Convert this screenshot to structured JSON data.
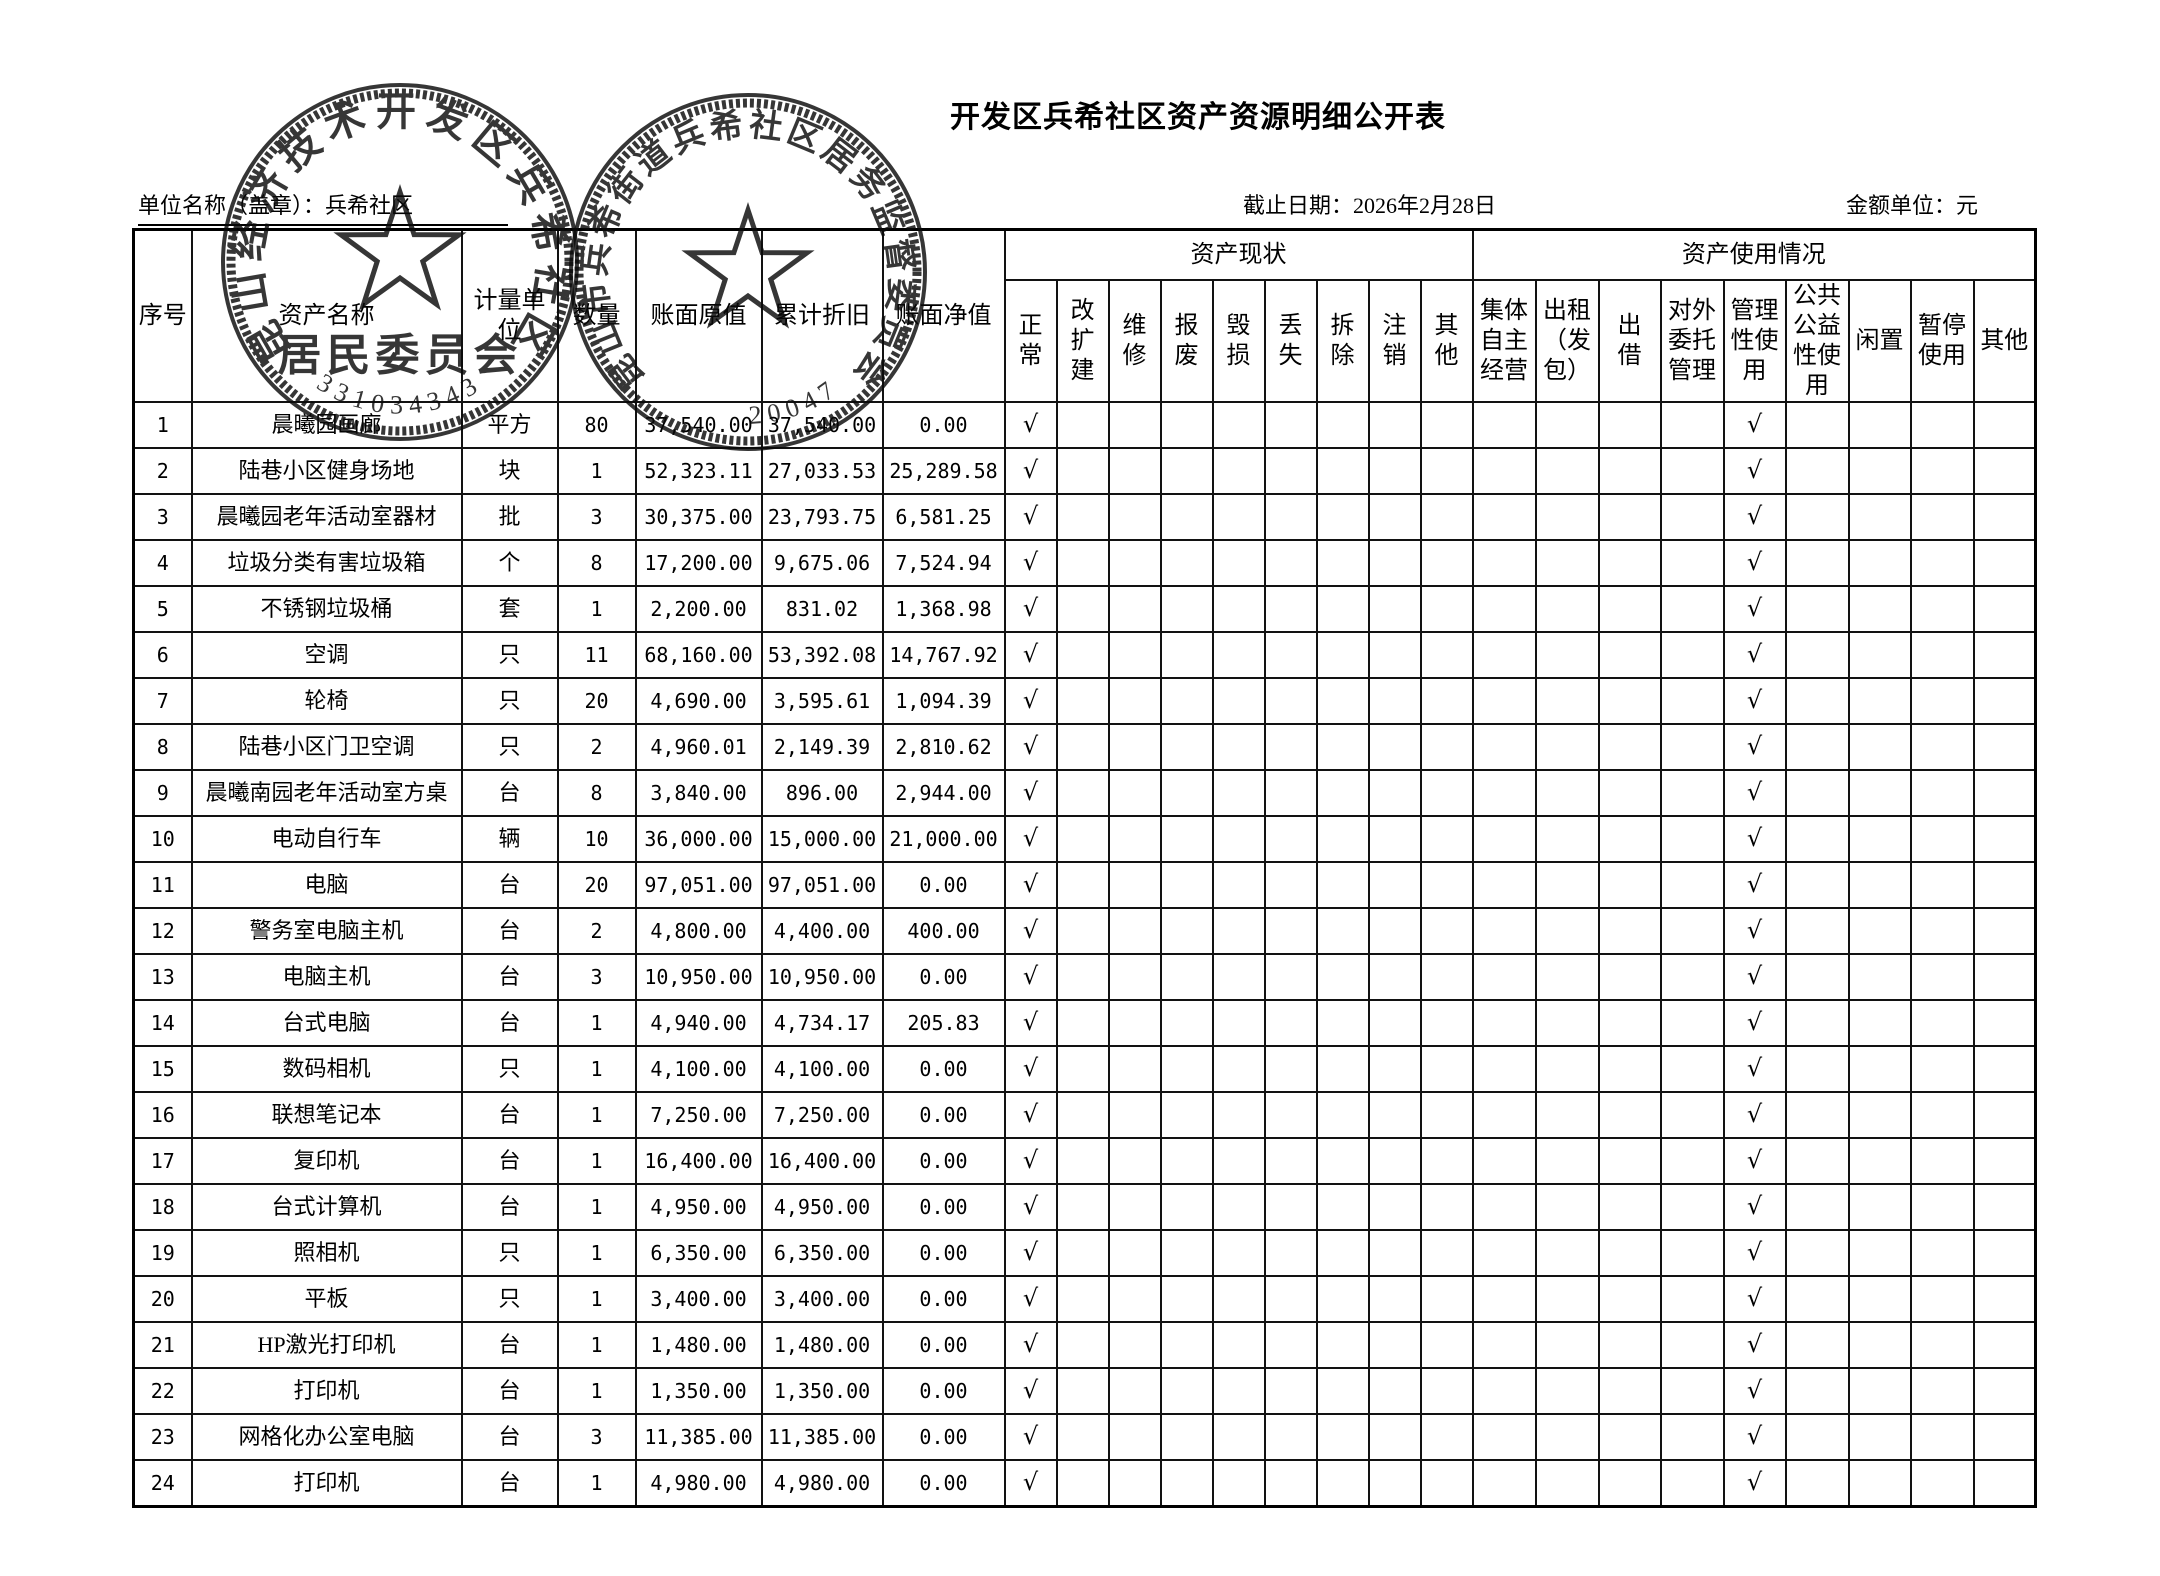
{
  "page": {
    "title": "开发区兵希社区资产资源明细公开表",
    "unit_label": "单位名称（盖章）：",
    "unit_value": "兵希社区",
    "report_date": "截止日期：2026年2月28日",
    "amount_unit": "金额单位：元"
  },
  "stamps": {
    "committee": {
      "arc_text": "昆山经济技术开发区兵希社区",
      "banner_text": "居民委员会",
      "serial": "331034343"
    },
    "supervision": {
      "arc_text": "昆山市兵希街道兵希社区居务监督委员会",
      "serial": "20047"
    }
  },
  "table": {
    "columns": {
      "index": "序号",
      "name": "资产名称",
      "unit": "计量单\n位",
      "qty": "数量",
      "orig": "账面原值",
      "dep": "累计折旧",
      "net": "账面净值",
      "status_group": "资产现状",
      "usage_group": "资产使用情况",
      "status_cols": [
        "正\n常",
        "改扩\n建",
        "维\n修",
        "报\n废",
        "毁\n损",
        "丢\n失",
        "拆\n除",
        "注\n销",
        "其他"
      ],
      "usage_cols": [
        "集体\n自主\n经营",
        "出租\n（发\n包）",
        "出\n借",
        "对外\n委托\n管理",
        "管理\n性使\n用",
        "公共\n公益\n性使\n用",
        "闲置",
        "暂停\n使用",
        "其他"
      ]
    },
    "check_mark": "√",
    "rows": [
      {
        "no": "1",
        "name": "晨曦园画廊",
        "unit": "平方",
        "qty": "80",
        "orig": "37,540.00",
        "dep": "37,540.00",
        "net": "0.00",
        "status": "正常",
        "usage": "管理性使用"
      },
      {
        "no": "2",
        "name": "陆巷小区健身场地",
        "unit": "块",
        "qty": "1",
        "orig": "52,323.11",
        "dep": "27,033.53",
        "net": "25,289.58",
        "status": "正常",
        "usage": "管理性使用"
      },
      {
        "no": "3",
        "name": "晨曦园老年活动室器材",
        "unit": "批",
        "qty": "3",
        "orig": "30,375.00",
        "dep": "23,793.75",
        "net": "6,581.25",
        "status": "正常",
        "usage": "管理性使用"
      },
      {
        "no": "4",
        "name": "垃圾分类有害垃圾箱",
        "unit": "个",
        "qty": "8",
        "orig": "17,200.00",
        "dep": "9,675.06",
        "net": "7,524.94",
        "status": "正常",
        "usage": "管理性使用"
      },
      {
        "no": "5",
        "name": "不锈钢垃圾桶",
        "unit": "套",
        "qty": "1",
        "orig": "2,200.00",
        "dep": "831.02",
        "net": "1,368.98",
        "status": "正常",
        "usage": "管理性使用"
      },
      {
        "no": "6",
        "name": "空调",
        "unit": "只",
        "qty": "11",
        "orig": "68,160.00",
        "dep": "53,392.08",
        "net": "14,767.92",
        "status": "正常",
        "usage": "管理性使用"
      },
      {
        "no": "7",
        "name": "轮椅",
        "unit": "只",
        "qty": "20",
        "orig": "4,690.00",
        "dep": "3,595.61",
        "net": "1,094.39",
        "status": "正常",
        "usage": "管理性使用"
      },
      {
        "no": "8",
        "name": "陆巷小区门卫空调",
        "unit": "只",
        "qty": "2",
        "orig": "4,960.01",
        "dep": "2,149.39",
        "net": "2,810.62",
        "status": "正常",
        "usage": "管理性使用"
      },
      {
        "no": "9",
        "name": "晨曦南园老年活动室方桌",
        "unit": "台",
        "qty": "8",
        "orig": "3,840.00",
        "dep": "896.00",
        "net": "2,944.00",
        "status": "正常",
        "usage": "管理性使用"
      },
      {
        "no": "10",
        "name": "电动自行车",
        "unit": "辆",
        "qty": "10",
        "orig": "36,000.00",
        "dep": "15,000.00",
        "net": "21,000.00",
        "status": "正常",
        "usage": "管理性使用"
      },
      {
        "no": "11",
        "name": "电脑",
        "unit": "台",
        "qty": "20",
        "orig": "97,051.00",
        "dep": "97,051.00",
        "net": "0.00",
        "status": "正常",
        "usage": "管理性使用"
      },
      {
        "no": "12",
        "name": "警务室电脑主机",
        "unit": "台",
        "qty": "2",
        "orig": "4,800.00",
        "dep": "4,400.00",
        "net": "400.00",
        "status": "正常",
        "usage": "管理性使用"
      },
      {
        "no": "13",
        "name": "电脑主机",
        "unit": "台",
        "qty": "3",
        "orig": "10,950.00",
        "dep": "10,950.00",
        "net": "0.00",
        "status": "正常",
        "usage": "管理性使用"
      },
      {
        "no": "14",
        "name": "台式电脑",
        "unit": "台",
        "qty": "1",
        "orig": "4,940.00",
        "dep": "4,734.17",
        "net": "205.83",
        "status": "正常",
        "usage": "管理性使用"
      },
      {
        "no": "15",
        "name": "数码相机",
        "unit": "只",
        "qty": "1",
        "orig": "4,100.00",
        "dep": "4,100.00",
        "net": "0.00",
        "status": "正常",
        "usage": "管理性使用"
      },
      {
        "no": "16",
        "name": "联想笔记本",
        "unit": "台",
        "qty": "1",
        "orig": "7,250.00",
        "dep": "7,250.00",
        "net": "0.00",
        "status": "正常",
        "usage": "管理性使用"
      },
      {
        "no": "17",
        "name": "复印机",
        "unit": "台",
        "qty": "1",
        "orig": "16,400.00",
        "dep": "16,400.00",
        "net": "0.00",
        "status": "正常",
        "usage": "管理性使用"
      },
      {
        "no": "18",
        "name": "台式计算机",
        "unit": "台",
        "qty": "1",
        "orig": "4,950.00",
        "dep": "4,950.00",
        "net": "0.00",
        "status": "正常",
        "usage": "管理性使用"
      },
      {
        "no": "19",
        "name": "照相机",
        "unit": "只",
        "qty": "1",
        "orig": "6,350.00",
        "dep": "6,350.00",
        "net": "0.00",
        "status": "正常",
        "usage": "管理性使用"
      },
      {
        "no": "20",
        "name": "平板",
        "unit": "只",
        "qty": "1",
        "orig": "3,400.00",
        "dep": "3,400.00",
        "net": "0.00",
        "status": "正常",
        "usage": "管理性使用"
      },
      {
        "no": "21",
        "name": "HP激光打印机",
        "unit": "台",
        "qty": "1",
        "orig": "1,480.00",
        "dep": "1,480.00",
        "net": "0.00",
        "status": "正常",
        "usage": "管理性使用"
      },
      {
        "no": "22",
        "name": "打印机",
        "unit": "台",
        "qty": "1",
        "orig": "1,350.00",
        "dep": "1,350.00",
        "net": "0.00",
        "status": "正常",
        "usage": "管理性使用"
      },
      {
        "no": "23",
        "name": "网格化办公室电脑",
        "unit": "台",
        "qty": "3",
        "orig": "11,385.00",
        "dep": "11,385.00",
        "net": "0.00",
        "status": "正常",
        "usage": "管理性使用"
      },
      {
        "no": "24",
        "name": "打印机",
        "unit": "台",
        "qty": "1",
        "orig": "4,980.00",
        "dep": "4,980.00",
        "net": "0.00",
        "status": "正常",
        "usage": "管理性使用"
      }
    ]
  }
}
